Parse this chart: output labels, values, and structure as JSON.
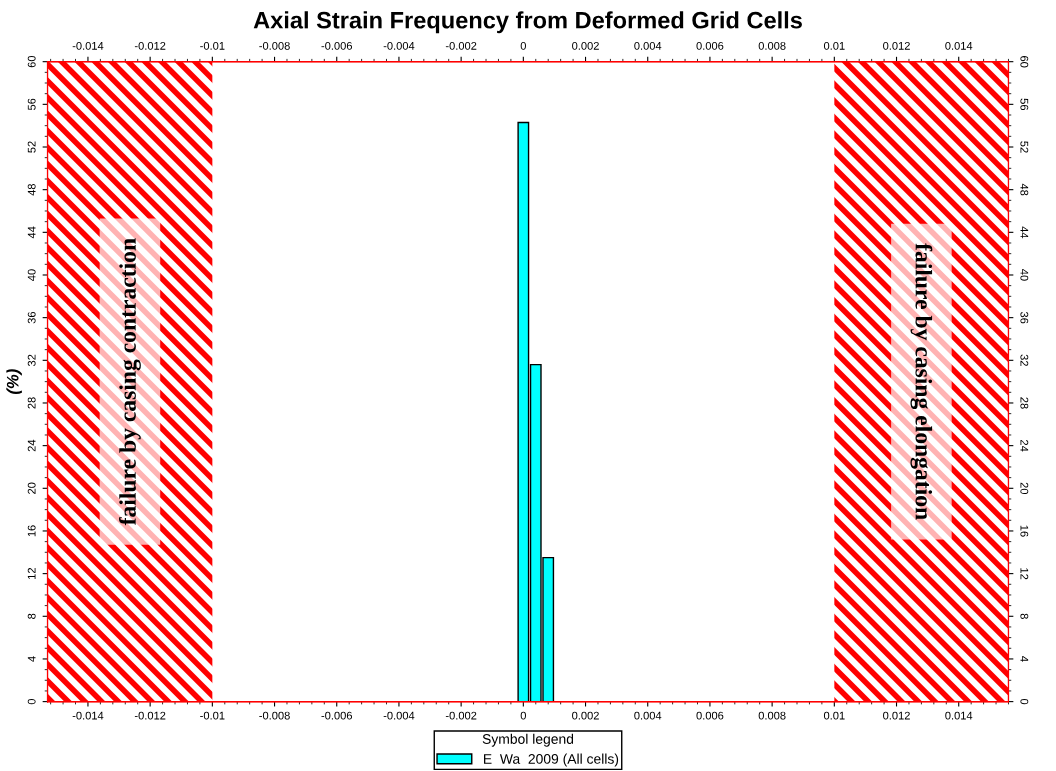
{
  "chart_data": {
    "type": "histogram",
    "title": "Axial Strain Frequency from Deformed Grid Cells",
    "ylabel": "(%)",
    "bins": [
      -0.0002,
      0.0002,
      0.0006,
      0.001
    ],
    "series": [
      {
        "name": "E  Wa  2009 (All cells)",
        "color": "#00ffff",
        "values": [
          54.3,
          31.6,
          13.5
        ]
      }
    ],
    "xlim": [
      -0.0153,
      0.0156
    ],
    "xticks": [
      -0.014,
      -0.012,
      -0.01,
      -0.008,
      -0.006,
      -0.004,
      -0.002,
      0,
      0.002,
      0.004,
      0.006,
      0.008,
      0.01,
      0.012,
      0.014
    ],
    "x2lim": [
      -0.0153,
      0.0156
    ],
    "x2ticks": [
      -0.014,
      -0.012,
      -0.01,
      -0.008,
      -0.006,
      -0.004,
      -0.002,
      0,
      0.002,
      0.004,
      0.006,
      0.008,
      0.01,
      0.012,
      0.014
    ],
    "ylim": [
      0,
      60
    ],
    "yticks": [
      0,
      4,
      8,
      12,
      16,
      20,
      24,
      28,
      32,
      36,
      40,
      44,
      48,
      52,
      56,
      60
    ],
    "y2lim": [
      0,
      60
    ],
    "y2ticks": [
      0,
      4,
      8,
      12,
      16,
      20,
      24,
      28,
      32,
      36,
      40,
      44,
      48,
      52,
      56,
      60
    ],
    "bands": [
      {
        "axis": "x",
        "from": -0.0153,
        "to": -0.01,
        "label": "failure by casing contraction",
        "color": "#ff0000"
      },
      {
        "axis": "x",
        "from": 0.01,
        "to": 0.0156,
        "label": "failure by casing elongation",
        "color": "#ff0000"
      }
    ],
    "legend": "bottom",
    "legend_title": "Symbol legend",
    "grid": false
  }
}
